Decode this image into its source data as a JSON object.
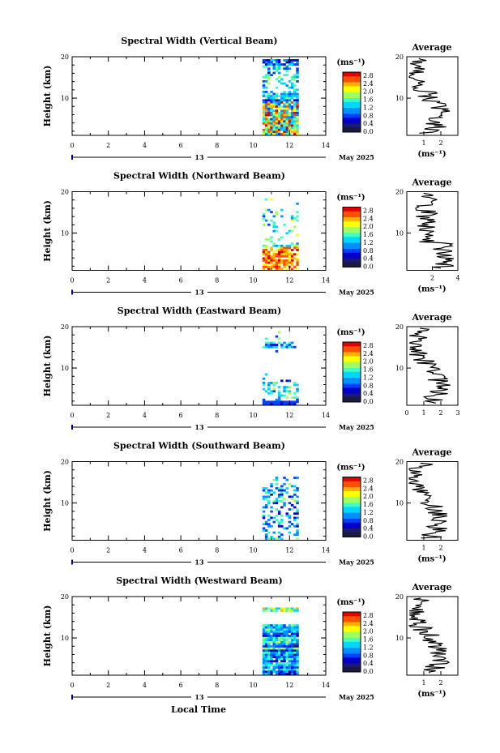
{
  "figure": {
    "x_axis_title": "Local Time",
    "date_center": "13",
    "date_right": "May 2025"
  },
  "chart_data": [
    {
      "type": "heatmap",
      "title": "Spectral Width (Vertical Beam)",
      "ylabel": "Height (km)",
      "xlim": [
        0,
        14
      ],
      "ylim": [
        1,
        20
      ],
      "x_ticks": [
        "0",
        "2",
        "4",
        "6",
        "8",
        "10",
        "12",
        "14"
      ],
      "y_ticks": [
        "20",
        "10"
      ],
      "data_time_range": [
        10.5,
        12.5
      ],
      "colorbar": {
        "unit": "(ms⁻¹)",
        "range": [
          0,
          2.8
        ],
        "labels": [
          "2.8",
          "2.4",
          "2.0",
          "1.6",
          "1.2",
          "0.8",
          "0.4",
          "0.0"
        ]
      },
      "average_profile": {
        "title": "Average",
        "xlabel": "(ms⁻¹)",
        "xlim": [
          0,
          3
        ],
        "x_tick_labels": [
          "1",
          "2"
        ],
        "x_tick_values": [
          1,
          2
        ],
        "y_ticks": [
          "20",
          "10"
        ]
      }
    },
    {
      "type": "heatmap",
      "title": "Spectral Width (Northward Beam)",
      "ylabel": "Height (km)",
      "xlim": [
        0,
        14
      ],
      "ylim": [
        1,
        20
      ],
      "x_ticks": [
        "0",
        "2",
        "4",
        "6",
        "8",
        "10",
        "12",
        "14"
      ],
      "y_ticks": [
        "20",
        "10"
      ],
      "data_time_range": [
        10.5,
        12.5
      ],
      "colorbar": {
        "unit": "(ms⁻¹)",
        "range": [
          0,
          2.8
        ],
        "labels": [
          "2.8",
          "2.4",
          "2.0",
          "1.6",
          "1.2",
          "0.8",
          "0.4",
          "0.0"
        ]
      },
      "average_profile": {
        "title": "Average",
        "xlabel": "(ms⁻¹)",
        "xlim": [
          0,
          4
        ],
        "x_tick_labels": [
          "2",
          "4"
        ],
        "x_tick_values": [
          2,
          4
        ],
        "y_ticks": [
          "20",
          "10"
        ]
      }
    },
    {
      "type": "heatmap",
      "title": "Spectral Width (Eastward Beam)",
      "ylabel": "Height (km)",
      "xlim": [
        0,
        14
      ],
      "ylim": [
        1,
        20
      ],
      "x_ticks": [
        "0",
        "2",
        "4",
        "6",
        "8",
        "10",
        "12",
        "14"
      ],
      "y_ticks": [
        "20",
        "10"
      ],
      "data_time_range": [
        10.5,
        12.5
      ],
      "colorbar": {
        "unit": "(ms⁻¹)",
        "range": [
          0,
          2.8
        ],
        "labels": [
          "2.8",
          "2.4",
          "2.0",
          "1.6",
          "1.2",
          "0.8",
          "0.4",
          "0.0"
        ]
      },
      "average_profile": {
        "title": "Average",
        "xlabel": "",
        "xlim": [
          0,
          3
        ],
        "x_tick_labels": [
          "0",
          "1",
          "2",
          "3"
        ],
        "x_tick_values": [
          0,
          1,
          2,
          3
        ],
        "y_ticks": [
          "20",
          "10"
        ]
      }
    },
    {
      "type": "heatmap",
      "title": "Spectral Width (Southward Beam)",
      "ylabel": "Height (km)",
      "xlim": [
        0,
        14
      ],
      "ylim": [
        1,
        20
      ],
      "x_ticks": [
        "0",
        "2",
        "4",
        "6",
        "8",
        "10",
        "12",
        "14"
      ],
      "y_ticks": [
        "20",
        "10"
      ],
      "data_time_range": [
        10.5,
        12.5
      ],
      "colorbar": {
        "unit": "(ms⁻¹)",
        "range": [
          0,
          2.8
        ],
        "labels": [
          "2.8",
          "2.4",
          "2.0",
          "1.6",
          "1.2",
          "0.8",
          "0.4",
          "0.0"
        ]
      },
      "average_profile": {
        "title": "Average",
        "xlabel": "(ms⁻¹)",
        "xlim": [
          0,
          3
        ],
        "x_tick_labels": [
          "1",
          "2"
        ],
        "x_tick_values": [
          1,
          2
        ],
        "y_ticks": [
          "20",
          "10"
        ]
      }
    },
    {
      "type": "heatmap",
      "title": "Spectral Width (Westward Beam)",
      "ylabel": "Height (km)",
      "xlim": [
        0,
        14
      ],
      "ylim": [
        1,
        20
      ],
      "x_ticks": [
        "0",
        "2",
        "4",
        "6",
        "8",
        "10",
        "12",
        "14"
      ],
      "y_ticks": [
        "20",
        "10"
      ],
      "data_time_range": [
        10.5,
        12.5
      ],
      "colorbar": {
        "unit": "(ms⁻¹)",
        "range": [
          0,
          2.8
        ],
        "labels": [
          "2.8",
          "2.4",
          "2.0",
          "1.6",
          "1.2",
          "0.8",
          "0.4",
          "0.0"
        ]
      },
      "average_profile": {
        "title": "Average",
        "xlabel": "(ms⁻¹)",
        "xlim": [
          0,
          3
        ],
        "x_tick_labels": [
          "1",
          "2"
        ],
        "x_tick_values": [
          1,
          2
        ],
        "y_ticks": [
          "20",
          "10"
        ]
      }
    }
  ],
  "colors": {
    "colormap": [
      "#1a1a70",
      "#0000c8",
      "#0040ff",
      "#0090ff",
      "#00d8ff",
      "#40ffc0",
      "#a0ff60",
      "#ffff00",
      "#ffb000",
      "#ff5000",
      "#e00000"
    ]
  }
}
